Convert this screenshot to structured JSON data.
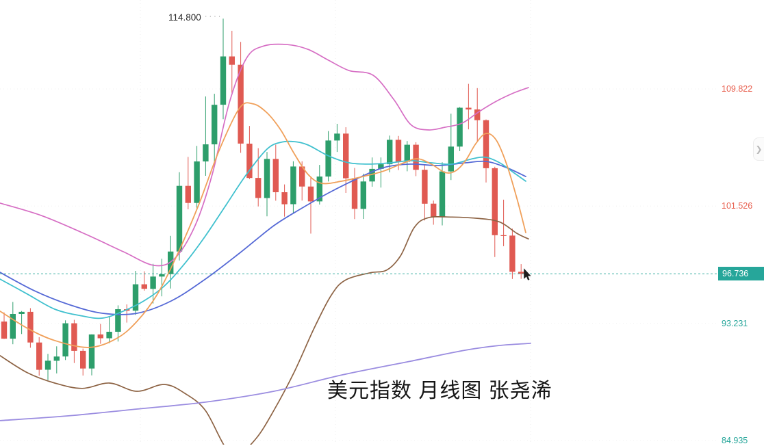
{
  "watermark": {
    "text": "美元指数 月线图 张尧浠"
  },
  "annotation": {
    "text": "114.800",
    "dots": "····"
  },
  "panel_toggle": {
    "chevron": "❯"
  },
  "axis": {
    "current_price_label": "96.736",
    "current_price": 96.736,
    "labels": [
      {
        "text": "109.822",
        "price": 109.822,
        "color": "#e8604f"
      },
      {
        "text": "101.526",
        "price": 101.526,
        "color": "#e8604f"
      },
      {
        "text": "93.231",
        "price": 93.231,
        "color": "#26a69a"
      },
      {
        "text": "84.935",
        "price": 84.935,
        "color": "#26a69a"
      }
    ]
  },
  "chart_data": {
    "type": "candlestick",
    "title": "美元指数 月线图 张尧浠",
    "timeframe": "monthly",
    "peak_annotation": 114.8,
    "current_price": 96.736,
    "y_axis_labels": [
      109.822,
      101.526,
      96.736,
      93.231,
      84.935
    ],
    "ylim": [
      84.0,
      116.5
    ],
    "style": {
      "up": "#2d9e6b",
      "down": "#e05a52",
      "dashed_price_line": "#26a69a",
      "badge": "#26a69a",
      "label_red": "#e8604f",
      "label_teal": "#26a69a"
    },
    "ohlc": [
      [
        93.35,
        94.0,
        92.12,
        92.14
      ],
      [
        92.14,
        94.74,
        91.75,
        93.89
      ],
      [
        93.89,
        94.1,
        92.47,
        94.04
      ],
      [
        94.04,
        94.3,
        91.5,
        91.87
      ],
      [
        91.87,
        92.25,
        89.52,
        89.94
      ],
      [
        89.94,
        91.06,
        89.21,
        90.58
      ],
      [
        90.58,
        91.6,
        89.68,
        90.88
      ],
      [
        90.88,
        93.44,
        90.63,
        93.23
      ],
      [
        93.23,
        93.48,
        90.42,
        91.28
      ],
      [
        91.28,
        91.44,
        89.53,
        90.03
      ],
      [
        90.03,
        92.45,
        89.54,
        92.44
      ],
      [
        92.44,
        93.19,
        91.78,
        92.17
      ],
      [
        92.17,
        93.73,
        91.82,
        92.63
      ],
      [
        92.63,
        94.5,
        91.94,
        94.23
      ],
      [
        94.23,
        94.57,
        93.28,
        94.12
      ],
      [
        94.12,
        96.94,
        93.82,
        95.99
      ],
      [
        95.99,
        96.91,
        95.54,
        95.67
      ],
      [
        95.67,
        97.44,
        94.63,
        96.54
      ],
      [
        96.54,
        97.8,
        95.14,
        96.71
      ],
      [
        96.71,
        99.42,
        95.69,
        98.31
      ],
      [
        98.31,
        103.93,
        97.68,
        102.96
      ],
      [
        102.96,
        105.01,
        101.3,
        101.75
      ],
      [
        101.75,
        105.79,
        101.29,
        104.69
      ],
      [
        104.69,
        109.29,
        103.67,
        105.9
      ],
      [
        105.9,
        109.48,
        104.63,
        108.7
      ],
      [
        108.7,
        114.8,
        107.68,
        112.12
      ],
      [
        112.12,
        113.94,
        109.53,
        111.53
      ],
      [
        111.53,
        113.15,
        105.3,
        105.95
      ],
      [
        105.95,
        107.2,
        103.44,
        103.52
      ],
      [
        103.52,
        105.63,
        101.5,
        102.1
      ],
      [
        102.1,
        105.36,
        100.8,
        104.87
      ],
      [
        104.87,
        105.88,
        101.91,
        102.51
      ],
      [
        102.51,
        103.06,
        100.78,
        101.66
      ],
      [
        101.66,
        104.7,
        101.01,
        104.33
      ],
      [
        104.33,
        104.7,
        101.92,
        102.91
      ],
      [
        102.91,
        103.57,
        99.58,
        101.86
      ],
      [
        101.86,
        104.44,
        101.64,
        103.62
      ],
      [
        103.62,
        106.84,
        103.27,
        106.17
      ],
      [
        106.17,
        107.35,
        105.36,
        106.66
      ],
      [
        106.66,
        107.11,
        102.46,
        103.5
      ],
      [
        103.5,
        104.23,
        100.61,
        101.33
      ],
      [
        101.33,
        103.82,
        100.62,
        103.27
      ],
      [
        103.27,
        104.97,
        102.9,
        104.16
      ],
      [
        104.16,
        104.97,
        102.84,
        104.49
      ],
      [
        104.49,
        106.52,
        103.92,
        106.22
      ],
      [
        106.22,
        106.49,
        104.08,
        104.67
      ],
      [
        104.67,
        106.13,
        103.99,
        105.87
      ],
      [
        105.87,
        106.05,
        103.65,
        104.1
      ],
      [
        104.1,
        104.45,
        100.51,
        101.7
      ],
      [
        101.7,
        101.92,
        100.21,
        100.78
      ],
      [
        100.78,
        104.63,
        100.16,
        103.98
      ],
      [
        103.98,
        108.07,
        103.37,
        105.74
      ],
      [
        105.74,
        108.54,
        105.42,
        108.49
      ],
      [
        108.49,
        110.18,
        106.96,
        108.37
      ],
      [
        108.37,
        109.88,
        106.13,
        107.61
      ],
      [
        107.61,
        107.66,
        103.2,
        104.21
      ],
      [
        104.21,
        104.31,
        97.92,
        99.47
      ],
      [
        99.47,
        101.98,
        98.69,
        99.44
      ],
      [
        99.44,
        99.93,
        96.37,
        96.88
      ],
      [
        96.88,
        97.42,
        96.38,
        96.736
      ]
    ],
    "overlays": [
      {
        "name": "bollinger-upper",
        "color": "#d66ec4",
        "width": 1.7,
        "points": [
          [
            0,
            101.74
          ],
          [
            60,
            100.87
          ],
          [
            120,
            99.65
          ],
          [
            180,
            98.3
          ],
          [
            225,
            97.33
          ],
          [
            255,
            97.81
          ],
          [
            285,
            100.14
          ],
          [
            310,
            103.77
          ],
          [
            335,
            108.85
          ],
          [
            360,
            111.99
          ],
          [
            385,
            112.86
          ],
          [
            420,
            112.96
          ],
          [
            450,
            112.62
          ],
          [
            480,
            111.85
          ],
          [
            510,
            111.12
          ],
          [
            545,
            110.79
          ],
          [
            575,
            109.09
          ],
          [
            600,
            107.3
          ],
          [
            625,
            106.92
          ],
          [
            650,
            107.11
          ],
          [
            675,
            107.4
          ],
          [
            700,
            108.22
          ],
          [
            725,
            108.95
          ],
          [
            750,
            109.53
          ],
          [
            772,
            109.92
          ]
        ]
      },
      {
        "name": "bollinger-lower",
        "color": "#8d6344",
        "width": 1.7,
        "points": [
          [
            0,
            90.94
          ],
          [
            40,
            89.73
          ],
          [
            80,
            89.0
          ],
          [
            120,
            88.62
          ],
          [
            160,
            89.0
          ],
          [
            200,
            88.42
          ],
          [
            240,
            88.9
          ],
          [
            270,
            88.27
          ],
          [
            300,
            87.06
          ],
          [
            330,
            84.4
          ],
          [
            350,
            84.06
          ],
          [
            375,
            85.13
          ],
          [
            400,
            87.06
          ],
          [
            430,
            89.8
          ],
          [
            460,
            93.0
          ],
          [
            485,
            95.3
          ],
          [
            505,
            96.3
          ],
          [
            540,
            96.8
          ],
          [
            565,
            97.0
          ],
          [
            585,
            98.0
          ],
          [
            605,
            100.0
          ],
          [
            625,
            100.7
          ],
          [
            660,
            100.75
          ],
          [
            700,
            100.65
          ],
          [
            730,
            100.4
          ],
          [
            755,
            99.6
          ],
          [
            772,
            99.2
          ]
        ]
      },
      {
        "name": "ma-long-purple",
        "color": "#9a8ce0",
        "width": 1.8,
        "points": [
          [
            0,
            86.34
          ],
          [
            100,
            86.68
          ],
          [
            200,
            87.16
          ],
          [
            300,
            87.65
          ],
          [
            400,
            88.42
          ],
          [
            500,
            89.58
          ],
          [
            600,
            90.55
          ],
          [
            680,
            91.33
          ],
          [
            730,
            91.66
          ],
          [
            775,
            91.81
          ]
        ]
      },
      {
        "name": "ma-slow-blue",
        "color": "#5569d6",
        "width": 1.8,
        "points": [
          [
            0,
            96.84
          ],
          [
            50,
            95.54
          ],
          [
            100,
            94.57
          ],
          [
            150,
            93.94
          ],
          [
            200,
            93.94
          ],
          [
            250,
            94.81
          ],
          [
            300,
            96.36
          ],
          [
            350,
            98.2
          ],
          [
            400,
            100.14
          ],
          [
            440,
            101.35
          ],
          [
            480,
            102.46
          ],
          [
            520,
            103.43
          ],
          [
            560,
            104.25
          ],
          [
            600,
            104.5
          ],
          [
            640,
            104.4
          ],
          [
            680,
            104.59
          ],
          [
            710,
            104.69
          ],
          [
            740,
            104.25
          ],
          [
            768,
            103.62
          ]
        ]
      },
      {
        "name": "ma-mid-cyan",
        "color": "#3fc0ce",
        "width": 1.8,
        "points": [
          [
            0,
            96.36
          ],
          [
            40,
            95.3
          ],
          [
            80,
            94.23
          ],
          [
            120,
            93.75
          ],
          [
            150,
            93.6
          ],
          [
            180,
            94.09
          ],
          [
            210,
            94.81
          ],
          [
            240,
            95.87
          ],
          [
            270,
            97.47
          ],
          [
            300,
            99.41
          ],
          [
            330,
            101.59
          ],
          [
            360,
            103.77
          ],
          [
            390,
            105.56
          ],
          [
            410,
            106.04
          ],
          [
            430,
            106.09
          ],
          [
            450,
            105.85
          ],
          [
            480,
            105.08
          ],
          [
            510,
            104.59
          ],
          [
            540,
            104.5
          ],
          [
            570,
            104.59
          ],
          [
            600,
            104.74
          ],
          [
            630,
            104.59
          ],
          [
            660,
            104.5
          ],
          [
            690,
            104.88
          ],
          [
            710,
            104.98
          ],
          [
            730,
            104.59
          ],
          [
            750,
            103.91
          ],
          [
            768,
            103.29
          ]
        ]
      },
      {
        "name": "ma-fast-orange",
        "color": "#f0a05a",
        "width": 1.8,
        "points": [
          [
            0,
            94.09
          ],
          [
            40,
            92.88
          ],
          [
            80,
            92.01
          ],
          [
            130,
            91.52
          ],
          [
            170,
            92.15
          ],
          [
            200,
            93.36
          ],
          [
            230,
            95.3
          ],
          [
            260,
            98.2
          ],
          [
            290,
            101.59
          ],
          [
            320,
            105.46
          ],
          [
            350,
            108.47
          ],
          [
            370,
            108.76
          ],
          [
            390,
            108.13
          ],
          [
            410,
            106.92
          ],
          [
            430,
            105.22
          ],
          [
            450,
            103.77
          ],
          [
            470,
            103.14
          ],
          [
            500,
            103.3
          ],
          [
            530,
            103.62
          ],
          [
            560,
            104.0
          ],
          [
            590,
            104.59
          ],
          [
            610,
            104.88
          ],
          [
            630,
            104.5
          ],
          [
            650,
            103.91
          ],
          [
            665,
            104.01
          ],
          [
            680,
            104.74
          ],
          [
            695,
            105.95
          ],
          [
            710,
            106.67
          ],
          [
            725,
            106.19
          ],
          [
            740,
            104.5
          ],
          [
            755,
            102.08
          ],
          [
            768,
            99.65
          ]
        ]
      }
    ]
  }
}
